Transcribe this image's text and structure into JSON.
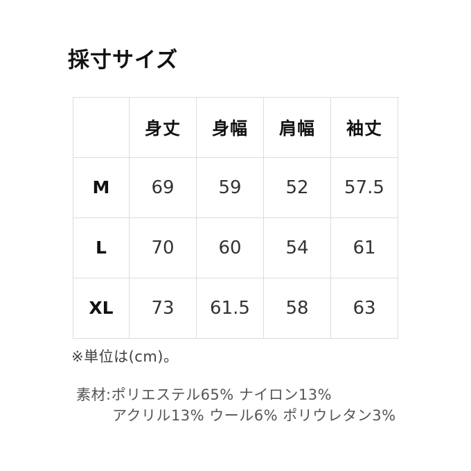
{
  "page": {
    "title": "採寸サイズ",
    "unit_note": "※単位は(cm)。",
    "material": {
      "line1": "素材:ポリエステル65% ナイロン13%",
      "line2": "アクリル13% ウール6% ポリウレタン3%"
    }
  },
  "size_table": {
    "columns": [
      "",
      "身丈",
      "身幅",
      "肩幅",
      "袖丈"
    ],
    "rows": [
      {
        "size": "M",
        "values": [
          "69",
          "59",
          "52",
          "57.5"
        ]
      },
      {
        "size": "L",
        "values": [
          "70",
          "60",
          "54",
          "61"
        ]
      },
      {
        "size": "XL",
        "values": [
          "73",
          "61.5",
          "58",
          "63"
        ]
      }
    ]
  },
  "colors": {
    "background": "#ffffff",
    "table_border": "#dcdcdc",
    "heading_text": "#111111",
    "cell_text": "#333333",
    "note_text": "#404040",
    "material_text": "#555555"
  }
}
